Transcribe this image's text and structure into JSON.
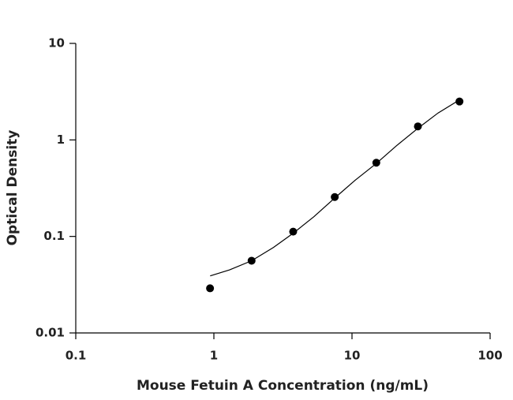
{
  "chart_data": {
    "type": "scatter",
    "xlabel": "Mouse Fetuin A Concentration (ng/mL)",
    "ylabel": "Optical Density",
    "xscale": "log",
    "yscale": "log",
    "xlim": [
      0.1,
      100
    ],
    "xticks": [
      0.1,
      1,
      10,
      100
    ],
    "ylim": [
      0.01,
      10
    ],
    "yticks": [
      0.01,
      0.1,
      1,
      10
    ],
    "series": [
      {
        "x": [
          0.938,
          1.875,
          3.75,
          7.5,
          15,
          30,
          60
        ],
        "values": [
          0.029,
          0.056,
          0.112,
          0.256,
          0.58,
          1.38,
          2.5
        ],
        "color": "#000000"
      }
    ],
    "curve": {
      "x": [
        0.94,
        1.3,
        1.875,
        2.7,
        3.75,
        5.3,
        7.5,
        10.5,
        15,
        21,
        30,
        42,
        60
      ],
      "values": [
        0.039,
        0.045,
        0.056,
        0.077,
        0.108,
        0.16,
        0.25,
        0.38,
        0.57,
        0.87,
        1.32,
        1.9,
        2.6
      ],
      "color": "#000000"
    }
  }
}
